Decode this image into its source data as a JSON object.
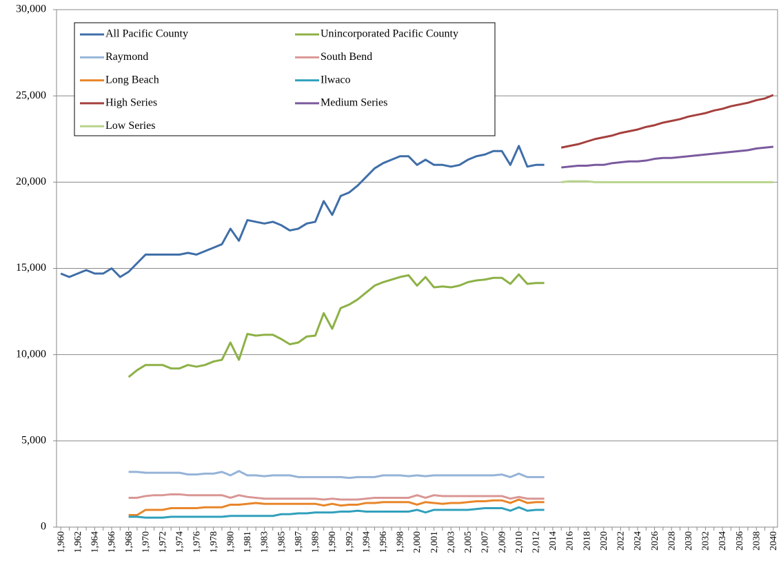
{
  "chart_data": {
    "type": "line",
    "categories": [
      "1,960",
      null,
      "1,962",
      null,
      "1,964",
      null,
      "1,966",
      null,
      "1,968",
      null,
      "1,970",
      null,
      "1,972",
      null,
      "1,974",
      null,
      "1,976",
      null,
      "1,978",
      null,
      "1,980",
      null,
      "1,981",
      null,
      "1,983",
      null,
      "1,985",
      null,
      "1,987",
      null,
      "1,989",
      null,
      "1,990",
      null,
      "1,992",
      null,
      "1,994",
      null,
      "1,996",
      null,
      "1,998",
      null,
      "2,000",
      null,
      "2,001",
      null,
      "2,003",
      null,
      "2,005",
      null,
      "2,007",
      null,
      "2,009",
      null,
      "2,010",
      null,
      "2,012",
      null,
      "2014",
      null,
      "2016",
      null,
      "2018",
      null,
      "2020",
      null,
      "2022",
      null,
      "2024",
      null,
      "2026",
      null,
      "2028",
      null,
      "2030",
      null,
      "2032",
      null,
      "2034",
      null,
      "2036",
      null,
      "2038",
      null,
      "2040"
    ],
    "ylim": [
      0,
      30000
    ],
    "yticks": [
      0,
      {
        "value": 5000,
        "label": "5,000"
      },
      {
        "value": 10000,
        "label": "10,000"
      },
      {
        "value": 15000,
        "label": "15,000"
      },
      {
        "value": 20000,
        "label": "20,000"
      },
      {
        "value": 25000,
        "label": "25,000"
      },
      {
        "value": 30000,
        "label": "30,000"
      }
    ],
    "grid": true,
    "legend": "top-left",
    "series": [
      {
        "name": "All Pacific County",
        "color": "#3f6ea8",
        "values": [
          14700,
          14500,
          14700,
          14900,
          14700,
          14700,
          15000,
          14500,
          14800,
          15300,
          15800,
          15800,
          15800,
          15800,
          15800,
          15900,
          15800,
          16000,
          16200,
          16400,
          17300,
          16600,
          17800,
          17700,
          17600,
          17700,
          17500,
          17200,
          17300,
          17600,
          17700,
          18900,
          18100,
          19200,
          19400,
          19800,
          20300,
          20800,
          21100,
          21300,
          21500,
          21500,
          21000,
          21300,
          21000,
          21000,
          20900,
          21000,
          21300,
          21500,
          21600,
          21800,
          21800,
          21000,
          22100,
          20900,
          21000,
          21000,
          null,
          null,
          null,
          null,
          null,
          null,
          null,
          null,
          null,
          null,
          null,
          null,
          null,
          null,
          null,
          null,
          null,
          null,
          null,
          null,
          null,
          null,
          null,
          null,
          null,
          null,
          null
        ]
      },
      {
        "name": "Unincorporated Pacific County",
        "color": "#8db146",
        "values": [
          null,
          null,
          null,
          null,
          null,
          null,
          null,
          null,
          8700,
          9100,
          9400,
          9400,
          9400,
          9200,
          9200,
          9400,
          9300,
          9400,
          9600,
          9700,
          10700,
          9700,
          11200,
          11100,
          11150,
          11150,
          10900,
          10600,
          10700,
          11050,
          11100,
          12400,
          11500,
          12700,
          12900,
          13200,
          13600,
          14000,
          14200,
          14350,
          14500,
          14600,
          14000,
          14500,
          13900,
          13950,
          13900,
          14000,
          14200,
          14300,
          14350,
          14450,
          14450,
          14100,
          14650,
          14100,
          14150,
          14150,
          null,
          null,
          null,
          null,
          null,
          null,
          null,
          null,
          null,
          null,
          null,
          null,
          null,
          null,
          null,
          null,
          null,
          null,
          null,
          null,
          null,
          null,
          null,
          null,
          null,
          null,
          null
        ]
      },
      {
        "name": "Raymond",
        "color": "#95b3d7",
        "values": [
          null,
          null,
          null,
          null,
          null,
          null,
          null,
          null,
          3200,
          3200,
          3150,
          3150,
          3150,
          3150,
          3150,
          3050,
          3050,
          3100,
          3100,
          3200,
          3000,
          3250,
          3000,
          3000,
          2950,
          3000,
          3000,
          3000,
          2900,
          2900,
          2900,
          2900,
          2900,
          2900,
          2850,
          2900,
          2900,
          2900,
          3000,
          3000,
          3000,
          2950,
          3000,
          2950,
          3000,
          3000,
          3000,
          3000,
          3000,
          3000,
          3000,
          3000,
          3050,
          2900,
          3100,
          2900,
          2900,
          2900,
          null,
          null,
          null,
          null,
          null,
          null,
          null,
          null,
          null,
          null,
          null,
          null,
          null,
          null,
          null,
          null,
          null,
          null,
          null,
          null,
          null,
          null,
          null,
          null,
          null,
          null,
          null
        ]
      },
      {
        "name": "South Bend",
        "color": "#d99694",
        "values": [
          null,
          null,
          null,
          null,
          null,
          null,
          null,
          null,
          1700,
          1700,
          1800,
          1850,
          1850,
          1900,
          1900,
          1850,
          1850,
          1850,
          1850,
          1850,
          1700,
          1850,
          1750,
          1700,
          1650,
          1650,
          1650,
          1650,
          1650,
          1650,
          1650,
          1600,
          1650,
          1600,
          1600,
          1600,
          1650,
          1700,
          1700,
          1700,
          1700,
          1700,
          1850,
          1700,
          1850,
          1800,
          1800,
          1800,
          1800,
          1800,
          1800,
          1800,
          1800,
          1650,
          1750,
          1650,
          1650,
          1650,
          null,
          null,
          null,
          null,
          null,
          null,
          null,
          null,
          null,
          null,
          null,
          null,
          null,
          null,
          null,
          null,
          null,
          null,
          null,
          null,
          null,
          null,
          null,
          null,
          null,
          null,
          null
        ]
      },
      {
        "name": "Long Beach",
        "color": "#e8862a",
        "values": [
          null,
          null,
          null,
          null,
          null,
          null,
          null,
          null,
          700,
          700,
          1000,
          1000,
          1000,
          1100,
          1100,
          1100,
          1100,
          1150,
          1150,
          1150,
          1300,
          1300,
          1350,
          1400,
          1350,
          1350,
          1350,
          1350,
          1350,
          1350,
          1350,
          1250,
          1350,
          1250,
          1300,
          1300,
          1400,
          1400,
          1450,
          1450,
          1450,
          1450,
          1300,
          1450,
          1400,
          1350,
          1400,
          1400,
          1450,
          1500,
          1500,
          1550,
          1550,
          1400,
          1600,
          1400,
          1450,
          1450,
          null,
          null,
          null,
          null,
          null,
          null,
          null,
          null,
          null,
          null,
          null,
          null,
          null,
          null,
          null,
          null,
          null,
          null,
          null,
          null,
          null,
          null,
          null,
          null,
          null,
          null,
          null
        ]
      },
      {
        "name": "Ilwaco",
        "color": "#31a0bc",
        "values": [
          null,
          null,
          null,
          null,
          null,
          null,
          null,
          null,
          600,
          600,
          550,
          550,
          550,
          600,
          600,
          600,
          600,
          600,
          600,
          600,
          650,
          650,
          650,
          650,
          650,
          650,
          750,
          750,
          800,
          800,
          850,
          850,
          850,
          900,
          900,
          950,
          900,
          900,
          900,
          900,
          900,
          900,
          1000,
          850,
          1000,
          1000,
          1000,
          1000,
          1000,
          1050,
          1100,
          1100,
          1100,
          950,
          1150,
          950,
          1000,
          1000,
          null,
          null,
          null,
          null,
          null,
          null,
          null,
          null,
          null,
          null,
          null,
          null,
          null,
          null,
          null,
          null,
          null,
          null,
          null,
          null,
          null,
          null,
          null,
          null,
          null,
          null,
          null
        ]
      },
      {
        "name": "High Series",
        "color": "#a5403e",
        "values": [
          null,
          null,
          null,
          null,
          null,
          null,
          null,
          null,
          null,
          null,
          null,
          null,
          null,
          null,
          null,
          null,
          null,
          null,
          null,
          null,
          null,
          null,
          null,
          null,
          null,
          null,
          null,
          null,
          null,
          null,
          null,
          null,
          null,
          null,
          null,
          null,
          null,
          null,
          null,
          null,
          null,
          null,
          null,
          null,
          null,
          null,
          null,
          null,
          null,
          null,
          null,
          null,
          null,
          null,
          null,
          null,
          null,
          null,
          null,
          22000,
          22100,
          22200,
          22350,
          22500,
          22600,
          22700,
          22850,
          22950,
          23050,
          23200,
          23300,
          23450,
          23550,
          23650,
          23800,
          23900,
          24000,
          24150,
          24250,
          24400,
          24500,
          24600,
          24750,
          24850,
          25050
        ]
      },
      {
        "name": "Medium Series",
        "color": "#7a5a9e",
        "values": [
          null,
          null,
          null,
          null,
          null,
          null,
          null,
          null,
          null,
          null,
          null,
          null,
          null,
          null,
          null,
          null,
          null,
          null,
          null,
          null,
          null,
          null,
          null,
          null,
          null,
          null,
          null,
          null,
          null,
          null,
          null,
          null,
          null,
          null,
          null,
          null,
          null,
          null,
          null,
          null,
          null,
          null,
          null,
          null,
          null,
          null,
          null,
          null,
          null,
          null,
          null,
          null,
          null,
          null,
          null,
          null,
          null,
          null,
          null,
          20850,
          20900,
          20950,
          20950,
          21000,
          21000,
          21100,
          21150,
          21200,
          21200,
          21250,
          21350,
          21400,
          21400,
          21450,
          21500,
          21550,
          21600,
          21650,
          21700,
          21750,
          21800,
          21850,
          21950,
          22000,
          22050
        ]
      },
      {
        "name": "Low Series",
        "color": "#b8d48c",
        "values": [
          null,
          null,
          null,
          null,
          null,
          null,
          null,
          null,
          null,
          null,
          null,
          null,
          null,
          null,
          null,
          null,
          null,
          null,
          null,
          null,
          null,
          null,
          null,
          null,
          null,
          null,
          null,
          null,
          null,
          null,
          null,
          null,
          null,
          null,
          null,
          null,
          null,
          null,
          null,
          null,
          null,
          null,
          null,
          null,
          null,
          null,
          null,
          null,
          null,
          null,
          null,
          null,
          null,
          null,
          null,
          null,
          null,
          null,
          null,
          20000,
          20050,
          20050,
          20050,
          20000,
          20000,
          20000,
          20000,
          20000,
          20000,
          20000,
          20000,
          20000,
          20000,
          20000,
          20000,
          20000,
          20000,
          20000,
          20000,
          20000,
          20000,
          20000,
          20000,
          20000,
          20000
        ]
      }
    ]
  }
}
